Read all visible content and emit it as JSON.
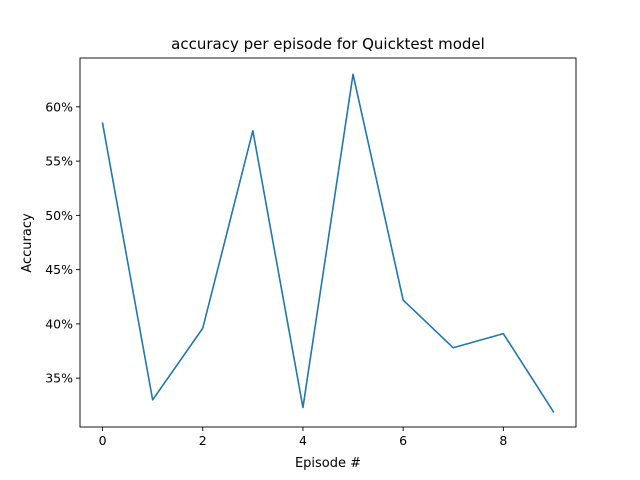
{
  "chart_data": {
    "type": "line",
    "title": "accuracy per episode for Quicktest model",
    "xlabel": "Episode #",
    "ylabel": "Accuracy",
    "xlim": [
      -0.45,
      9.45
    ],
    "ylim": [
      0.305,
      0.645
    ],
    "x_ticks": [
      0,
      2,
      4,
      6,
      8
    ],
    "x_tick_labels": [
      "0",
      "2",
      "4",
      "6",
      "8"
    ],
    "y_ticks": [
      0.35,
      0.4,
      0.45,
      0.5,
      0.55,
      0.6
    ],
    "y_tick_labels": [
      "35%",
      "40%",
      "45%",
      "50%",
      "55%",
      "60%"
    ],
    "grid": false,
    "legend": "none",
    "series": [
      {
        "x": [
          0,
          1,
          2,
          3,
          4,
          5,
          6,
          7,
          8,
          9
        ],
        "values": [
          0.585,
          0.33,
          0.396,
          0.578,
          0.323,
          0.63,
          0.422,
          0.378,
          0.391,
          0.319
        ],
        "color": "#1f77b4"
      }
    ]
  }
}
